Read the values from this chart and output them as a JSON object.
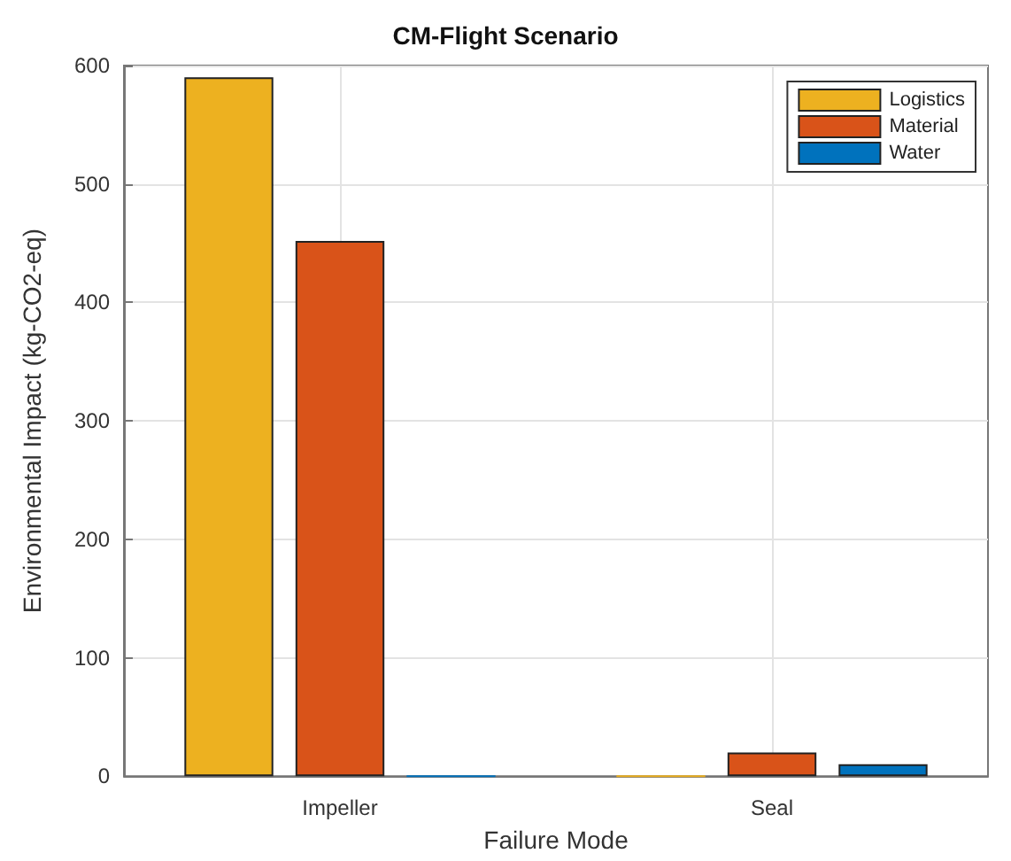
{
  "chart_data": {
    "type": "bar",
    "title": "CM-Flight Scenario",
    "xlabel": "Failure Mode",
    "ylabel": "Environmental Impact (kg-CO2-eq)",
    "categories": [
      "Impeller",
      "Seal"
    ],
    "series": [
      {
        "name": "Logistics",
        "color": "#edb120",
        "values": [
          590,
          0
        ]
      },
      {
        "name": "Material",
        "color": "#d95319",
        "values": [
          452,
          20
        ]
      },
      {
        "name": "Water",
        "color": "#0072bd",
        "values": [
          0,
          10
        ]
      }
    ],
    "ylim": [
      0,
      600
    ],
    "yticks": [
      0,
      100,
      200,
      300,
      400,
      500,
      600
    ],
    "grid": true,
    "legend": "top right"
  }
}
